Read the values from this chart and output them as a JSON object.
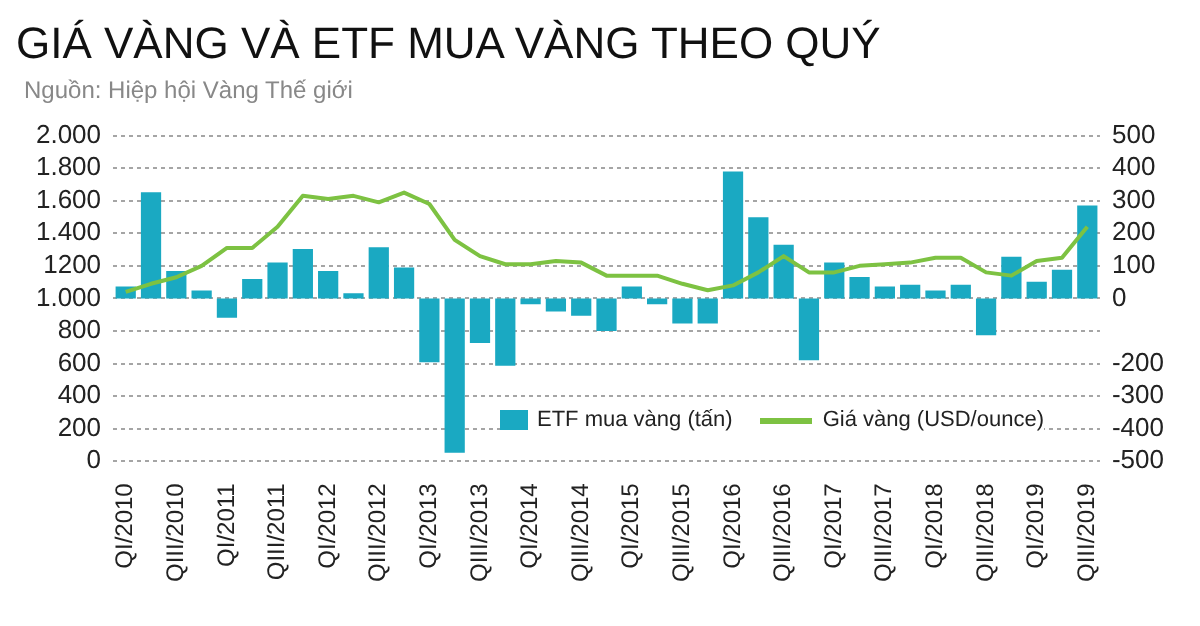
{
  "chart_data": {
    "type": "bar",
    "title": "GIÁ VÀNG VÀ ETF MUA VÀNG THEO QUÝ",
    "subtitle": "Nguồn: Hiệp hội Vàng Thế giới",
    "categories": [
      "QI/2010",
      null,
      "QIII/2010",
      null,
      "QI/2011",
      null,
      "QIII/2011",
      null,
      "QI/2012",
      null,
      "QIII/2012",
      null,
      "QI/2013",
      null,
      "QIII/2013",
      null,
      "QI/2014",
      null,
      "QIII/2014",
      null,
      "QI/2015",
      null,
      "QIII/2015",
      null,
      "QI/2016",
      null,
      "QIII/2016",
      null,
      "QI/2017",
      null,
      "QIII/2017",
      null,
      "QI/2018",
      null,
      "QIII/2018",
      null,
      "QI/2019",
      null,
      "QIII/2019"
    ],
    "series": [
      {
        "name": "ETF mua vàng (tấn)",
        "axis": "y2",
        "color": "#1aa9c2",
        "values": [
          37,
          326,
          84,
          24,
          -59,
          60,
          110,
          152,
          84,
          16,
          157,
          95,
          -196,
          -474,
          -137,
          -207,
          -18,
          -40,
          -53,
          -100,
          37,
          -18,
          -77,
          -77,
          390,
          249,
          165,
          -190,
          110,
          66,
          37,
          42,
          24,
          42,
          -113,
          128,
          51,
          88,
          285
        ]
      },
      {
        "name": "Giá vàng (USD/ounce)",
        "type": "line",
        "axis": "y",
        "color": "#7dc242",
        "marker": "none",
        "line_style": "solid",
        "values": [
          1040,
          1090,
          1130,
          1200,
          1310,
          1310,
          1440,
          1630,
          1610,
          1630,
          1590,
          1650,
          1580,
          1360,
          1260,
          1210,
          1210,
          1230,
          1220,
          1140,
          1140,
          1140,
          1090,
          1050,
          1080,
          1160,
          1260,
          1160,
          1160,
          1200,
          1210,
          1220,
          1250,
          1250,
          1160,
          1140,
          1230,
          1250,
          1440
        ]
      }
    ],
    "ylim": [
      0,
      2000
    ],
    "yticks": [
      0,
      200,
      400,
      600,
      800,
      {
        "value": 1000,
        "label": "1.000"
      },
      1200,
      {
        "value": 1400,
        "label": "1.400"
      },
      {
        "value": 1600,
        "label": "1.600"
      },
      {
        "value": 1800,
        "label": "1.800"
      },
      {
        "value": 2000,
        "label": "2.000"
      }
    ],
    "y2lim": [
      -500,
      500
    ],
    "y2ticks": [
      -500,
      -400,
      -300,
      -200,
      0,
      100,
      200,
      300,
      400,
      500
    ],
    "grid": "y",
    "legend": "bottom right"
  }
}
